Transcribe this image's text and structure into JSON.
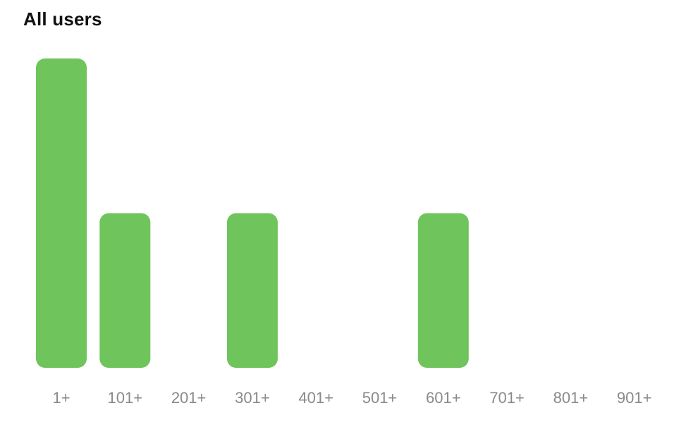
{
  "chart_data": {
    "type": "bar",
    "title": "All users",
    "categories": [
      "1+",
      "101+",
      "201+",
      "301+",
      "401+",
      "501+",
      "601+",
      "701+",
      "801+",
      "901+"
    ],
    "values": [
      2,
      1,
      0,
      1,
      0,
      0,
      1,
      0,
      0,
      0
    ],
    "ylim": [
      0,
      2
    ],
    "grid": false,
    "legend": "none",
    "colors": {
      "bar": "#6fc45b",
      "tick_label": "#8a8a8e",
      "title": "#111111"
    }
  }
}
